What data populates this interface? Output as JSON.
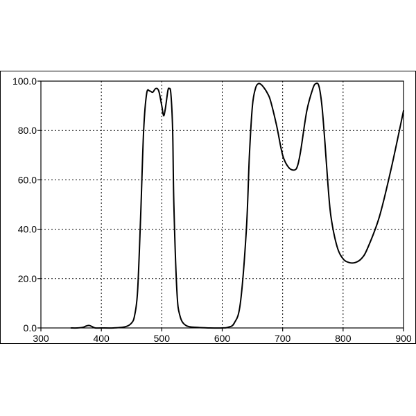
{
  "chart_data": {
    "type": "line",
    "xlim": [
      300,
      900
    ],
    "ylim": [
      0,
      100
    ],
    "x_ticks": [
      300,
      400,
      500,
      600,
      700,
      800,
      900
    ],
    "y_ticks": [
      0,
      20,
      40,
      60,
      80,
      100
    ],
    "x_tick_labels": [
      "300",
      "400",
      "500",
      "600",
      "700",
      "800",
      "900"
    ],
    "y_tick_labels": [
      "0.0",
      "20.0",
      "40.0",
      "60.0",
      "80.0",
      "100.0"
    ],
    "grid": true,
    "legend": "none",
    "series": [
      {
        "color": "#000000",
        "x": [
          350,
          360,
          370,
          375,
          380,
          385,
          390,
          400,
          420,
          440,
          450,
          455,
          460,
          465,
          470,
          475,
          480,
          485,
          490,
          495,
          500,
          503,
          506,
          510,
          512,
          515,
          518,
          520,
          525,
          530,
          540,
          560,
          580,
          600,
          610,
          620,
          630,
          640,
          645,
          650,
          655,
          660,
          665,
          670,
          675,
          680,
          690,
          700,
          710,
          720,
          725,
          730,
          740,
          750,
          755,
          760,
          765,
          770,
          775,
          780,
          790,
          800,
          810,
          820,
          830,
          840,
          860,
          880,
          900
        ],
        "y": [
          0,
          0,
          0.3,
          0.8,
          1,
          0.5,
          0,
          0,
          0,
          0.5,
          2,
          5,
          15,
          45,
          80,
          95,
          96,
          95.5,
          97,
          96,
          90,
          86,
          89,
          96,
          97,
          95,
          80,
          50,
          15,
          5,
          1,
          0.2,
          0,
          0,
          0.3,
          2,
          10,
          40,
          70,
          90,
          97,
          99,
          98.5,
          97,
          95,
          92,
          82,
          70,
          65,
          64,
          66,
          72,
          88,
          97,
          99,
          98,
          90,
          75,
          58,
          45,
          33,
          28,
          26.5,
          26.5,
          28,
          32,
          45,
          65,
          88
        ]
      }
    ]
  }
}
